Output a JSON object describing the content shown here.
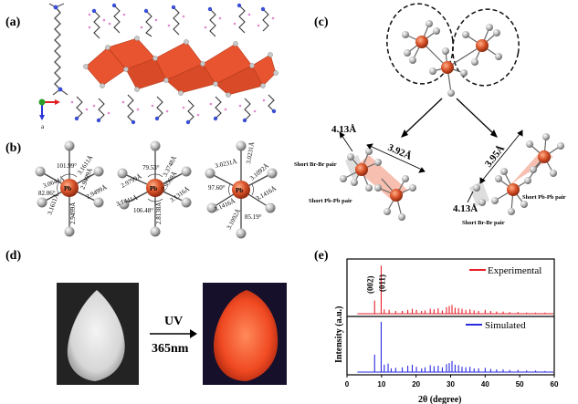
{
  "panels": {
    "a": {
      "label": "(a)"
    },
    "b": {
      "label": "(b)",
      "oct1": {
        "center": "Pb",
        "lengths": [
          "3.0644Å",
          "2.9499Å",
          "3.1611Å",
          "2.9499Å",
          "3.0644Å",
          "3.1611Å"
        ],
        "angles": [
          "101.99°",
          "82.06°"
        ]
      },
      "oct2": {
        "center": "Pb",
        "lengths": [
          "3.3748Å",
          "2.9569Å",
          "3.1316Å",
          "2.8138Å",
          "3.1441Å",
          "2.9799Å"
        ],
        "angles": [
          "79.53°",
          "106.48°"
        ]
      },
      "oct3": {
        "center": "Pb",
        "lengths": [
          "3.0231Å",
          "3.1092Å",
          "3.1416Å",
          "3.0231Å",
          "3.1092Å",
          "3.1416Å"
        ],
        "angles": [
          "97.60°",
          "85.19°"
        ]
      }
    },
    "c": {
      "label": "(c)",
      "left": {
        "d1": "4.13Å",
        "d2": "3.92Å",
        "br_pair": "Short Br-Br pair",
        "pb_pair": "Short Pb-Pb pair"
      },
      "right": {
        "d1": "3.95Å",
        "d2": "4.13Å",
        "pb_pair": "Short Pb-Pb pair",
        "br_pair": "Short Br-Br pair"
      }
    },
    "d": {
      "label": "(d)",
      "arrow_top": "UV",
      "arrow_bottom": "365nm"
    },
    "e": {
      "label": "(e)"
    }
  },
  "colors": {
    "pb": "#d9532a",
    "br": "#b3b3b3",
    "octahedron": "#e8542f",
    "experimental": "#e8202a",
    "simulated": "#2a2ae0",
    "glow": "#ff5a2e"
  },
  "chart_data": {
    "type": "line",
    "title": "",
    "xlabel": "2θ (degree)",
    "ylabel": "Intensity (a.u.)",
    "xlim": [
      0,
      60
    ],
    "x_ticks": [
      "0",
      "10",
      "20",
      "30",
      "40",
      "50",
      "60"
    ],
    "grid": false,
    "series": [
      {
        "name": "Experimental",
        "peaks": [
          [
            8.0,
            0.24
          ],
          [
            9.9,
            0.88
          ],
          [
            10.8,
            0.08
          ],
          [
            12.2,
            0.07
          ],
          [
            14.1,
            0.05
          ],
          [
            16.0,
            0.05
          ],
          [
            17.6,
            0.07
          ],
          [
            18.9,
            0.09
          ],
          [
            20.1,
            0.07
          ],
          [
            21.6,
            0.05
          ],
          [
            22.6,
            0.06
          ],
          [
            24.1,
            0.09
          ],
          [
            25.2,
            0.08
          ],
          [
            26.4,
            0.1
          ],
          [
            27.6,
            0.06
          ],
          [
            28.8,
            0.12
          ],
          [
            29.6,
            0.14
          ],
          [
            30.4,
            0.16
          ],
          [
            31.3,
            0.11
          ],
          [
            32.3,
            0.1
          ],
          [
            33.3,
            0.09
          ],
          [
            34.4,
            0.07
          ],
          [
            35.6,
            0.08
          ],
          [
            36.8,
            0.06
          ],
          [
            38.1,
            0.05
          ],
          [
            40.0,
            0.07
          ],
          [
            41.6,
            0.05
          ],
          [
            43.3,
            0.04
          ],
          [
            45.2,
            0.04
          ],
          [
            47.1,
            0.03
          ],
          [
            49.5,
            0.03
          ],
          [
            52.0,
            0.02
          ],
          [
            54.6,
            0.02
          ],
          [
            57.3,
            0.02
          ]
        ]
      },
      {
        "name": "Simulated",
        "peaks": [
          [
            8.0,
            0.33
          ],
          [
            9.9,
            0.95
          ],
          [
            10.8,
            0.14
          ],
          [
            11.9,
            0.16
          ],
          [
            12.8,
            0.07
          ],
          [
            14.1,
            0.08
          ],
          [
            16.0,
            0.09
          ],
          [
            17.6,
            0.12
          ],
          [
            18.9,
            0.14
          ],
          [
            20.1,
            0.1
          ],
          [
            21.6,
            0.07
          ],
          [
            22.6,
            0.09
          ],
          [
            24.1,
            0.13
          ],
          [
            25.2,
            0.11
          ],
          [
            26.4,
            0.12
          ],
          [
            27.6,
            0.09
          ],
          [
            28.8,
            0.15
          ],
          [
            29.6,
            0.17
          ],
          [
            30.4,
            0.21
          ],
          [
            31.3,
            0.14
          ],
          [
            32.3,
            0.13
          ],
          [
            33.3,
            0.1
          ],
          [
            34.4,
            0.09
          ],
          [
            35.6,
            0.1
          ],
          [
            36.8,
            0.07
          ],
          [
            38.1,
            0.07
          ],
          [
            40.0,
            0.08
          ],
          [
            41.6,
            0.06
          ],
          [
            43.3,
            0.05
          ],
          [
            45.2,
            0.05
          ],
          [
            47.1,
            0.04
          ],
          [
            49.5,
            0.04
          ],
          [
            52.0,
            0.03
          ],
          [
            54.6,
            0.03
          ],
          [
            57.3,
            0.02
          ]
        ]
      }
    ],
    "annotations": [
      {
        "text": "(002)",
        "x": 8.0
      },
      {
        "text": "(011)",
        "x": 9.9
      }
    ]
  }
}
